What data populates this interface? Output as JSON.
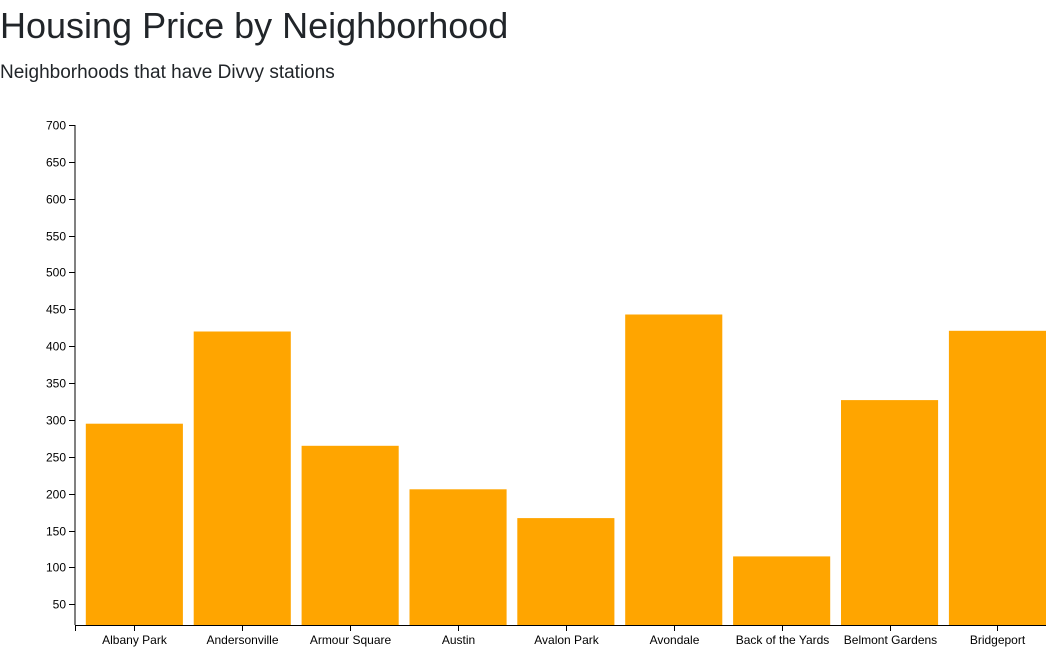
{
  "header": {
    "title": "Housing Price by Neighborhood",
    "subtitle": "Neighborhoods that have Divvy stations"
  },
  "colors": {
    "bar": "#ffa500",
    "axis": "#000000",
    "text": "#212529"
  },
  "chart_data": {
    "type": "bar",
    "title": "",
    "xlabel": "",
    "ylabel": "",
    "categories": [
      "Albany Park",
      "Andersonville",
      "Armour Square",
      "Austin",
      "Avalon Park",
      "Avondale",
      "Back of the Yards",
      "Belmont Gardens",
      "Bridgeport"
    ],
    "values": [
      295,
      420,
      265,
      206,
      167,
      443,
      115,
      327,
      421
    ],
    "ylim": [
      22,
      700
    ],
    "yticks": [
      50,
      100,
      150,
      200,
      250,
      300,
      350,
      400,
      450,
      500,
      550,
      600,
      650,
      700
    ],
    "grid": false,
    "legend": "none"
  }
}
